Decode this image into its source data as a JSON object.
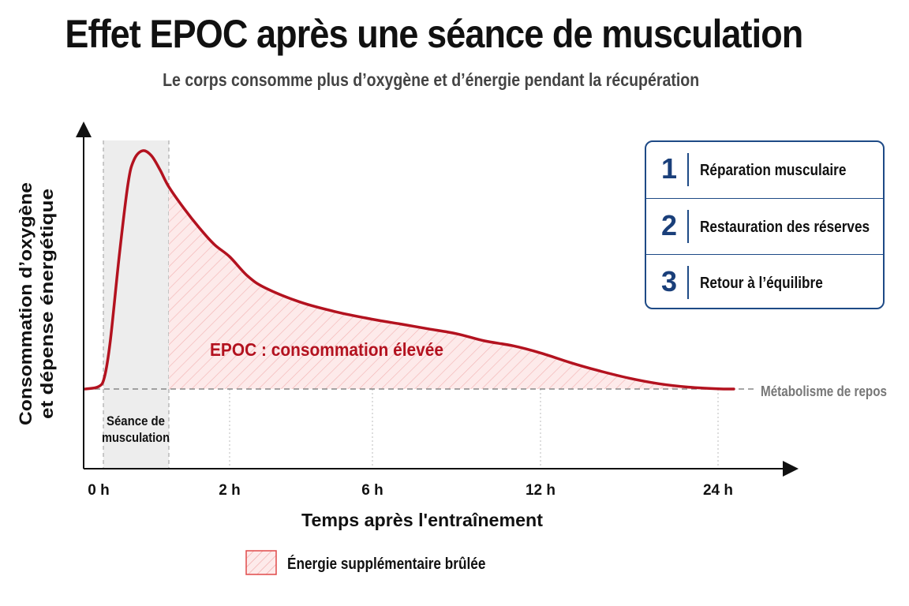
{
  "title": "Effet EPOC après une séance de musculation",
  "subtitle": "Le corps consomme plus d’oxygène et d’énergie pendant la récupération",
  "chart_data": {
    "type": "area",
    "ylabel_line1": "Consommation d’oxygène",
    "ylabel_line2": "et dépense énergétique",
    "xlabel": "Temps après l'entraînement",
    "x_ticks": [
      "0 h",
      "2 h",
      "6 h",
      "12 h",
      "24 h"
    ],
    "workout_label_line1": "Séance de",
    "workout_label_line2": "musculation",
    "baseline_label": "Métabolisme de repos",
    "area_label": "EPOC : consommation élevée",
    "legend_label": "Énergie supplémentaire brûlée",
    "series": [
      {
        "x": [
          -0.3,
          0,
          0.1,
          0.2,
          0.35,
          0.5,
          0.6,
          0.75,
          0.9,
          1.05,
          1.2,
          1.4,
          1.6,
          1.8,
          2.0,
          2.5,
          3,
          4,
          5,
          6,
          7,
          8,
          9,
          10,
          11,
          12,
          14,
          16,
          18,
          20,
          22,
          24,
          24.5
        ],
        "y": [
          0,
          1,
          5,
          20,
          55,
          85,
          95,
          99,
          97,
          91,
          84,
          75,
          67,
          60,
          55,
          47,
          42,
          36,
          32,
          29,
          27,
          25,
          23,
          20,
          18,
          15,
          11,
          7.5,
          4.5,
          2.2,
          0.8,
          0.1,
          0
        ]
      }
    ],
    "color": "#b3121f",
    "fill_color": "#fbe3e3"
  },
  "steps": [
    {
      "num": "1",
      "label": "Réparation musculaire"
    },
    {
      "num": "2",
      "label": "Restauration des réserves"
    },
    {
      "num": "3",
      "label": "Retour à l’équilibre"
    }
  ],
  "accent_color": "#1e4a86"
}
